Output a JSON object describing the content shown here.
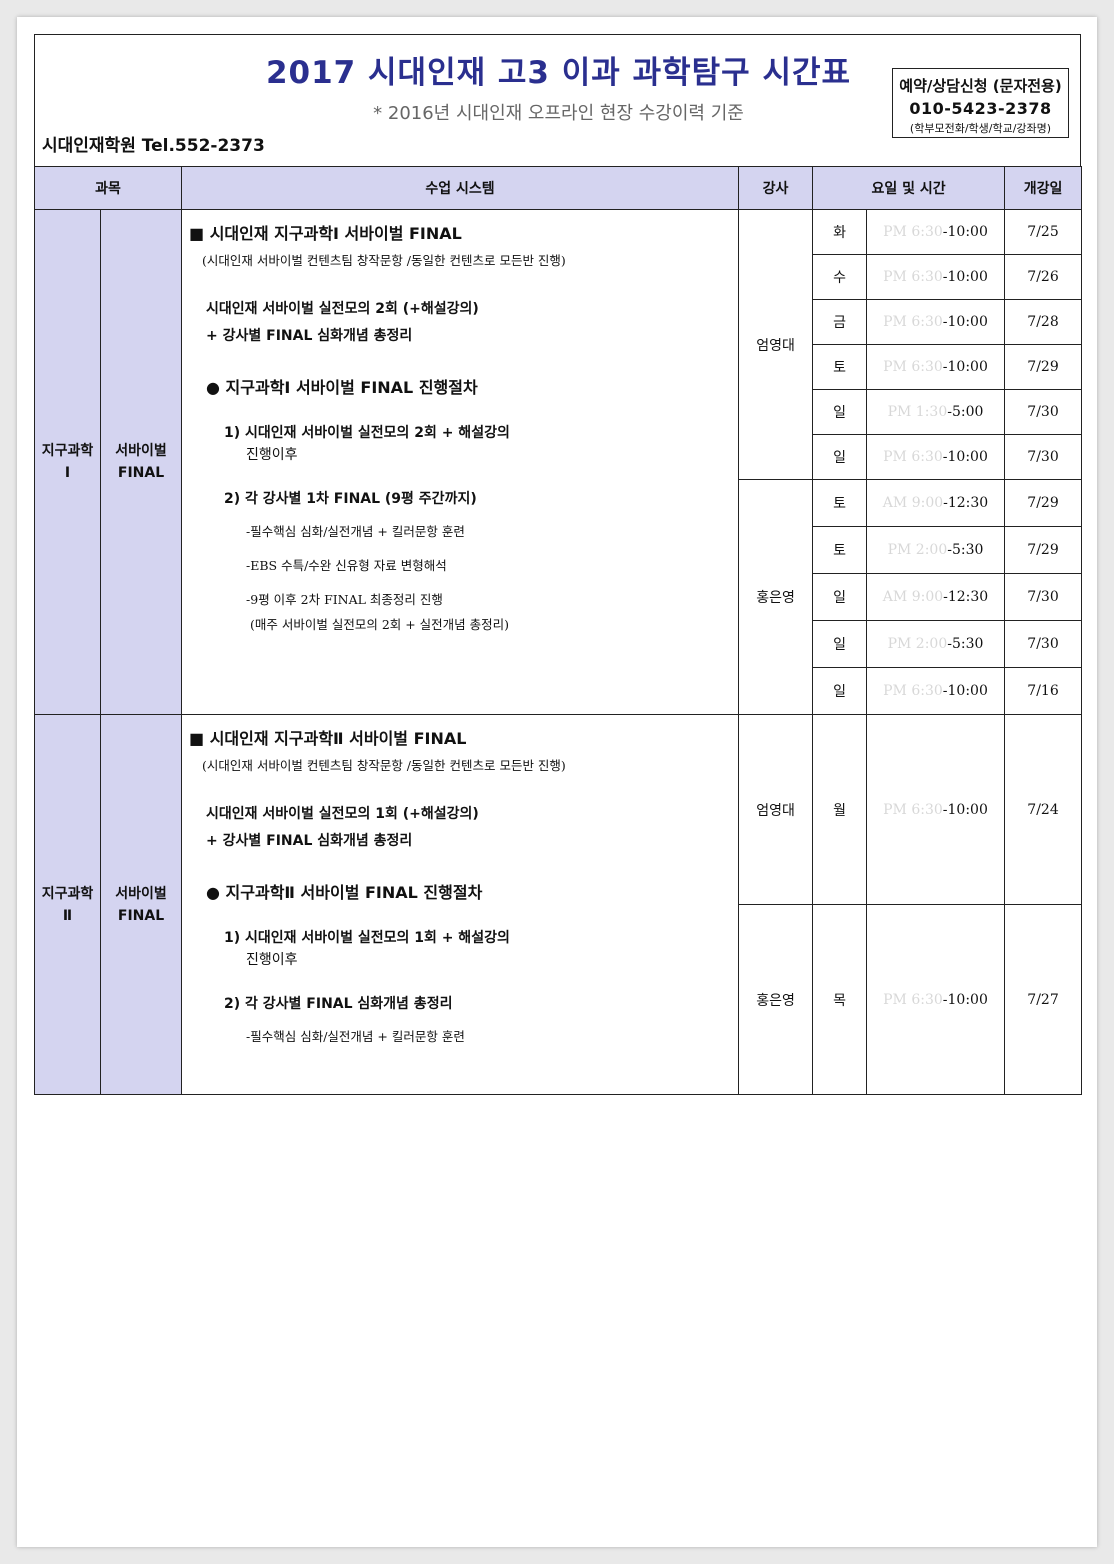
{
  "header": {
    "title": "2017 시대인재 고3 이과 과학탐구 시간표",
    "subtitle": "* 2016년 시대인재 오프라인 현장 수강이력 기준",
    "academy": "시대인재학원 Tel.552-2373",
    "contact": {
      "line1": "예약/상담신청 (문자전용)",
      "phone": "010-5423-2378",
      "note": "(학부모전화/학생/학교/강좌명)"
    }
  },
  "table_headers": {
    "subject": "과목",
    "system": "수업 시스템",
    "instructor": "강사",
    "day_time": "요일 및 시간",
    "start_date": "개강일"
  },
  "sections": [
    {
      "subject": "지구과학\nⅠ",
      "course": "서바이벌\nFINAL",
      "system": {
        "heading": "■ 시대인재 지구과학Ⅰ 서바이벌 FINAL",
        "note": "(시대인재 서바이벌 컨텐츠팀 창작문항 /동일한 컨텐츠로 모든반 진행)",
        "main1": "시대인재 서바이벌 실전모의 2회 (+해설강의)",
        "main2": "+ 강사별 FINAL 심화개념 총정리",
        "proc": "● 지구과학Ⅰ 서바이벌 FINAL 진행절차",
        "step1a": "1) 시대인재 서바이벌 실전모의 2회 + 해설강의",
        "step1b": "진행이후",
        "step2": "2) 각 강사별 1차 FINAL (9평 주간까지)",
        "sub1": "-필수핵심 심화/실전개념 + 킬러문항 훈련",
        "sub2": "-EBS 수특/수완 신유형 자료 변형해석",
        "sub3": "-9평 이후 2차 FINAL 최종정리 진행",
        "sub4": "(매주 서바이벌 실전모의 2회 + 실전개념 총정리)"
      },
      "groups": [
        {
          "instructor": "엄영대",
          "rows": [
            {
              "day": "화",
              "time_start": "PM 6:30",
              "time_end": "-10:00",
              "date": "7/25"
            },
            {
              "day": "수",
              "time_start": "PM 6:30",
              "time_end": "-10:00",
              "date": "7/26"
            },
            {
              "day": "금",
              "time_start": "PM 6:30",
              "time_end": "-10:00",
              "date": "7/28"
            },
            {
              "day": "토",
              "time_start": "PM 6:30",
              "time_end": "-10:00",
              "date": "7/29"
            },
            {
              "day": "일",
              "time_start": "PM 1:30",
              "time_end": "-5:00",
              "date": "7/30"
            },
            {
              "day": "일",
              "time_start": "PM 6:30",
              "time_end": "-10:00",
              "date": "7/30"
            }
          ]
        },
        {
          "instructor": "홍은영",
          "rows": [
            {
              "day": "토",
              "time_start": "AM 9:00",
              "time_end": "-12:30",
              "date": "7/29"
            },
            {
              "day": "토",
              "time_start": "PM 2:00",
              "time_end": "-5:30",
              "date": "7/29"
            },
            {
              "day": "일",
              "time_start": "AM 9:00",
              "time_end": "-12:30",
              "date": "7/30"
            },
            {
              "day": "일",
              "time_start": "PM 2:00",
              "time_end": "-5:30",
              "date": "7/30"
            },
            {
              "day": "일",
              "time_start": "PM 6:30",
              "time_end": "-10:00",
              "date": "7/16"
            }
          ]
        }
      ]
    },
    {
      "subject": "지구과학\nⅡ",
      "course": "서바이벌\nFINAL",
      "system": {
        "heading": "■ 시대인재 지구과학Ⅱ 서바이벌 FINAL",
        "note": "(시대인재 서바이벌 컨텐츠팀 창작문항 /동일한 컨텐츠로 모든반 진행)",
        "main1": "시대인재 서바이벌 실전모의 1회 (+해설강의)",
        "main2": "+ 강사별 FINAL 심화개념 총정리",
        "proc": "● 지구과학Ⅱ 서바이벌 FINAL 진행절차",
        "step1a": "1) 시대인재 서바이벌 실전모의 1회 + 해설강의",
        "step1b": "진행이후",
        "step2": "2) 각 강사별 FINAL 심화개념 총정리",
        "sub1": "-필수핵심 심화/실전개념 + 킬러문항 훈련"
      },
      "groups": [
        {
          "instructor": "엄영대",
          "rows": [
            {
              "day": "월",
              "time_start": "PM 6:30",
              "time_end": "-10:00",
              "date": "7/24"
            }
          ]
        },
        {
          "instructor": "홍은영",
          "rows": [
            {
              "day": "목",
              "time_start": "PM 6:30",
              "time_end": "-10:00",
              "date": "7/27"
            }
          ]
        }
      ]
    }
  ]
}
